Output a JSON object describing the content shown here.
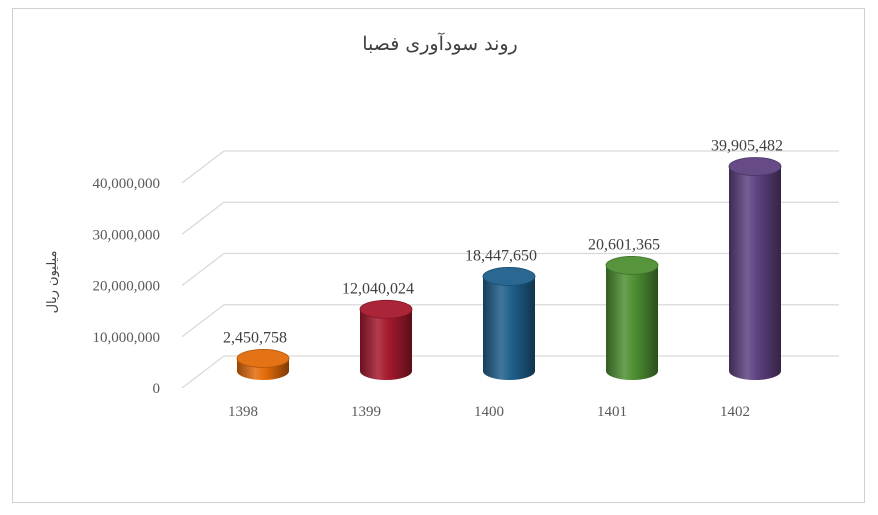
{
  "chart_data": {
    "type": "bar",
    "title": "روند سودآوری فصبا",
    "xlabel": "",
    "ylabel": "میلیون ریال",
    "categories": [
      "1398",
      "1399",
      "1400",
      "1401",
      "1402"
    ],
    "values": [
      2450758,
      12040024,
      18447650,
      20601365,
      39905482
    ],
    "value_labels": [
      "2,450,758",
      "12,040,024",
      "18,447,650",
      "20,601,365",
      "39,905,482"
    ],
    "colors": [
      "#E36C0A",
      "#A5192E",
      "#1F5F8B",
      "#4E8F32",
      "#5E4180"
    ],
    "ylim": [
      0,
      40000000
    ],
    "yticks": [
      0,
      10000000,
      20000000,
      30000000,
      40000000
    ],
    "ytick_labels": [
      "0",
      "10,000,000",
      "20,000,000",
      "30,000,000",
      "40,000,000"
    ],
    "grid": true,
    "legend": "none",
    "style": "3d-cylinder"
  }
}
